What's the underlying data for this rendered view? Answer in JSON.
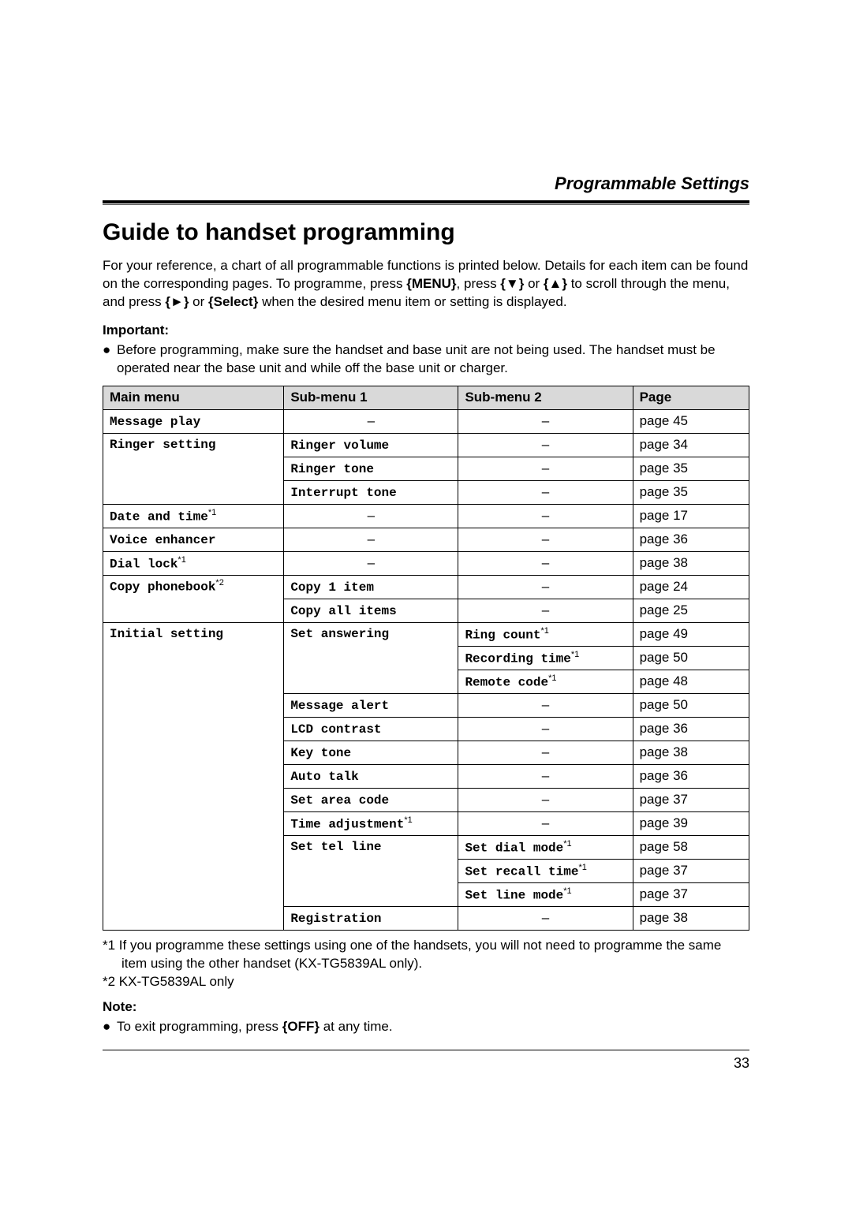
{
  "section_title": "Programmable Settings",
  "heading": "Guide to handset programming",
  "intro_parts": {
    "p1": "For your reference, a chart of all programmable functions is printed below. Details for each item can be found on the corresponding pages. To programme, press ",
    "k_menu": "{MENU}",
    "p2": ", press ",
    "k_down": "{▼}",
    "p3": " or ",
    "k_up": "{▲}",
    "p4": " to scroll through the menu, and press ",
    "k_right": "{►}",
    "p5": " or ",
    "k_select": "{Select}",
    "p6": " when the desired menu item or setting is displayed."
  },
  "important_label": "Important:",
  "important_bullet": "Before programming, make sure the handset and base unit are not being used. The handset must be operated near the base unit and while off the base unit or charger.",
  "table": {
    "headers": {
      "c1": "Main menu",
      "c2": "Sub-menu 1",
      "c3": "Sub-menu 2",
      "c4": "Page"
    },
    "rows": [
      {
        "main": "Message play",
        "main_ref": "",
        "sub1": "–",
        "sub1_is_dash": true,
        "sub1_ref": "",
        "sub2": "–",
        "sub2_is_dash": true,
        "sub2_ref": "",
        "page": "page 45"
      },
      {
        "main": "Ringer setting",
        "main_ref": "",
        "main_rowspan": 3,
        "sub1": "Ringer volume",
        "sub1_ref": "",
        "sub2": "–",
        "sub2_is_dash": true,
        "sub2_ref": "",
        "page": "page 34"
      },
      {
        "sub1": "Ringer tone",
        "sub1_ref": "",
        "sub2": "–",
        "sub2_is_dash": true,
        "sub2_ref": "",
        "page": "page 35"
      },
      {
        "sub1": "Interrupt tone",
        "sub1_ref": "",
        "sub2": "–",
        "sub2_is_dash": true,
        "sub2_ref": "",
        "page": "page 35"
      },
      {
        "main": "Date and time",
        "main_ref": "*1",
        "sub1": "–",
        "sub1_is_dash": true,
        "sub1_ref": "",
        "sub2": "–",
        "sub2_is_dash": true,
        "sub2_ref": "",
        "page": "page 17"
      },
      {
        "main": "Voice enhancer",
        "main_ref": "",
        "sub1": "–",
        "sub1_is_dash": true,
        "sub1_ref": "",
        "sub2": "–",
        "sub2_is_dash": true,
        "sub2_ref": "",
        "page": "page 36"
      },
      {
        "main": "Dial lock",
        "main_ref": "*1",
        "sub1": "–",
        "sub1_is_dash": true,
        "sub1_ref": "",
        "sub2": "–",
        "sub2_is_dash": true,
        "sub2_ref": "",
        "page": "page 38"
      },
      {
        "main": "Copy phonebook",
        "main_ref": "*2",
        "main_rowspan": 2,
        "sub1": "Copy 1 item",
        "sub1_ref": "",
        "sub2": "–",
        "sub2_is_dash": true,
        "sub2_ref": "",
        "page": "page 24"
      },
      {
        "sub1": "Copy all items",
        "sub1_ref": "",
        "sub2": "–",
        "sub2_is_dash": true,
        "sub2_ref": "",
        "page": "page 25"
      },
      {
        "main": "Initial setting",
        "main_ref": "",
        "main_rowspan": 13,
        "sub1": "Set answering",
        "sub1_ref": "",
        "sub1_rowspan": 3,
        "sub2": "Ring count",
        "sub2_ref": "*1",
        "page": "page 49"
      },
      {
        "sub2": "Recording time",
        "sub2_ref": "*1",
        "page": "page 50"
      },
      {
        "sub2": "Remote code",
        "sub2_ref": "*1",
        "page": "page 48"
      },
      {
        "sub1": "Message alert",
        "sub1_ref": "",
        "sub2": "–",
        "sub2_is_dash": true,
        "sub2_ref": "",
        "page": "page 50"
      },
      {
        "sub1": "LCD contrast",
        "sub1_ref": "",
        "sub2": "–",
        "sub2_is_dash": true,
        "sub2_ref": "",
        "page": "page 36"
      },
      {
        "sub1": "Key tone",
        "sub1_ref": "",
        "sub2": "–",
        "sub2_is_dash": true,
        "sub2_ref": "",
        "page": "page 38"
      },
      {
        "sub1": "Auto talk",
        "sub1_ref": "",
        "sub2": "–",
        "sub2_is_dash": true,
        "sub2_ref": "",
        "page": "page 36"
      },
      {
        "sub1": "Set area code",
        "sub1_ref": "",
        "sub2": "–",
        "sub2_is_dash": true,
        "sub2_ref": "",
        "page": "page 37"
      },
      {
        "sub1": "Time adjustment",
        "sub1_ref": "*1",
        "sub2": "–",
        "sub2_is_dash": true,
        "sub2_ref": "",
        "page": "page 39"
      },
      {
        "sub1": "Set tel line",
        "sub1_ref": "",
        "sub1_rowspan": 3,
        "sub2": "Set dial mode",
        "sub2_ref": "*1",
        "page": "page 58"
      },
      {
        "sub2": "Set recall time",
        "sub2_ref": "*1",
        "page": "page 37"
      },
      {
        "sub2": "Set line mode",
        "sub2_ref": "*1",
        "page": "page 37"
      },
      {
        "sub1": "Registration",
        "sub1_ref": "",
        "sub2": "–",
        "sub2_is_dash": true,
        "sub2_ref": "",
        "page": "page 38"
      }
    ]
  },
  "footnote1": "*1 If you programme these settings using one of the handsets, you will not need to programme the same item using the other handset (KX-TG5839AL only).",
  "footnote2": "*2 KX-TG5839AL only",
  "note_label": "Note:",
  "note_parts": {
    "p1": "To exit programming, press ",
    "k_off": "{OFF}",
    "p2": " at any time."
  },
  "page_number": "33",
  "col_widths": {
    "c1": "28%",
    "c2": "27%",
    "c3": "27%",
    "c4": "18%"
  }
}
